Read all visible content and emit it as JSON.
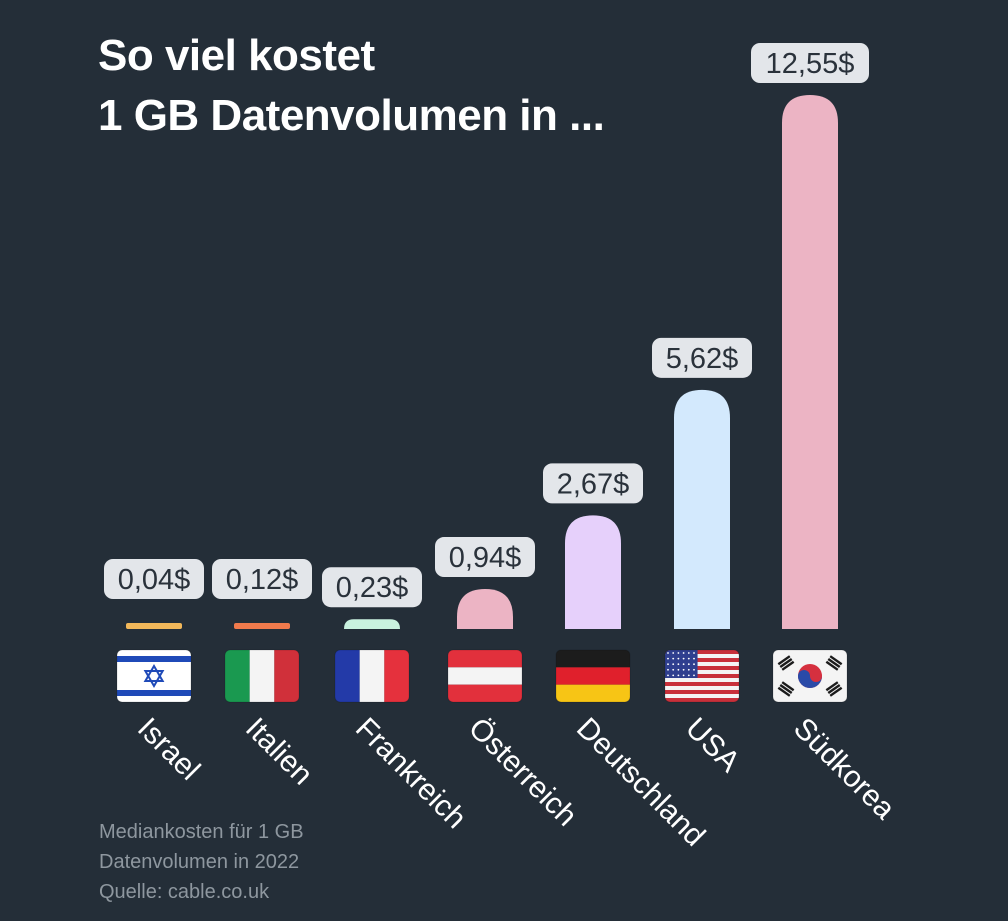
{
  "header": {
    "title_line1": "So viel kostet",
    "title_line2": "1 GB Datenvolumen in ..."
  },
  "footnote": {
    "line1": "Mediankosten für 1 GB",
    "line2": "Datenvolumen in 2022",
    "line3": "Quelle: cable.co.uk"
  },
  "chart_data": {
    "type": "bar",
    "title": "So viel kostet 1 GB Datenvolumen in ...",
    "categories": [
      "Israel",
      "Italien",
      "Frankreich",
      "Österreich",
      "Deutschland",
      "USA",
      "Südkorea"
    ],
    "values": [
      0.04,
      0.12,
      0.23,
      0.94,
      2.67,
      5.62,
      12.55
    ],
    "value_labels": [
      "0,04$",
      "0,12$",
      "0,23$",
      "0,94$",
      "2,67$",
      "5,62$",
      "12,55$"
    ],
    "unit": "$",
    "colors": [
      "#f2b85a",
      "#f07a4c",
      "#c9f2df",
      "#ecb4c4",
      "#e6d0fb",
      "#d3e9fd",
      "#ecb4c4"
    ],
    "flags": [
      "israel-flag",
      "italy-flag",
      "france-flag",
      "austria-flag",
      "germany-flag",
      "usa-flag",
      "south-korea-flag"
    ],
    "label_background": "#e3e6ea",
    "label_text_color": "#2a323b",
    "ylim": [
      0,
      12.55
    ],
    "grid": false,
    "legend": "none"
  }
}
